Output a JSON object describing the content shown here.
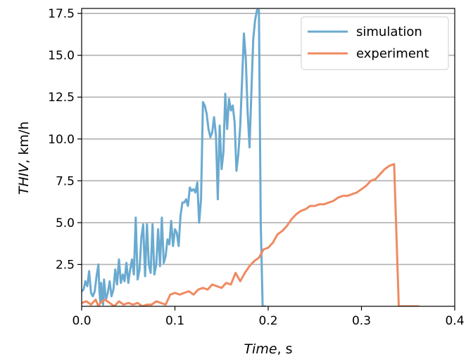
{
  "chart_data": {
    "type": "line",
    "xlabel": {
      "italic": "Time",
      "unit": ", s"
    },
    "ylabel": {
      "italic": "THIV",
      "unit": ", km/h"
    },
    "xlim": [
      0.0,
      0.4
    ],
    "ylim": [
      0.0,
      17.8
    ],
    "xticks": [
      0.0,
      0.1,
      0.2,
      0.3,
      0.4
    ],
    "xtick_labels": [
      "0.0",
      "0.1",
      "0.2",
      "0.3",
      "0.4"
    ],
    "yticks": [
      2.5,
      5.0,
      7.5,
      10.0,
      12.5,
      15.0,
      17.5
    ],
    "ytick_labels": [
      "2.5",
      "5.0",
      "7.5",
      "10.0",
      "12.5",
      "15.0",
      "17.5"
    ],
    "grid": "horizontal",
    "legend_position": "top-right",
    "series": [
      {
        "name": "simulation",
        "color": "#6aaad0",
        "x": [
          0.0,
          0.002,
          0.004,
          0.006,
          0.008,
          0.01,
          0.012,
          0.014,
          0.016,
          0.018,
          0.019,
          0.02,
          0.021,
          0.022,
          0.023,
          0.024,
          0.026,
          0.028,
          0.03,
          0.032,
          0.034,
          0.036,
          0.038,
          0.04,
          0.042,
          0.044,
          0.046,
          0.048,
          0.05,
          0.052,
          0.054,
          0.056,
          0.058,
          0.06,
          0.062,
          0.064,
          0.066,
          0.068,
          0.07,
          0.072,
          0.074,
          0.076,
          0.078,
          0.08,
          0.082,
          0.084,
          0.086,
          0.088,
          0.09,
          0.092,
          0.094,
          0.096,
          0.098,
          0.1,
          0.102,
          0.104,
          0.106,
          0.108,
          0.11,
          0.112,
          0.114,
          0.116,
          0.118,
          0.12,
          0.122,
          0.124,
          0.126,
          0.128,
          0.13,
          0.132,
          0.134,
          0.136,
          0.138,
          0.14,
          0.142,
          0.144,
          0.146,
          0.148,
          0.15,
          0.152,
          0.154,
          0.156,
          0.158,
          0.16,
          0.162,
          0.164,
          0.166,
          0.168,
          0.17,
          0.172,
          0.174,
          0.176,
          0.178,
          0.18,
          0.182,
          0.184,
          0.186,
          0.188,
          0.19,
          0.192,
          0.194,
          0.196,
          0.1965,
          0.1965
        ],
        "y": [
          0.9,
          1.0,
          1.5,
          1.2,
          2.1,
          0.8,
          0.6,
          0.9,
          1.8,
          2.5,
          1.0,
          0.2,
          1.4,
          0.5,
          0.1,
          1.6,
          0.4,
          0.8,
          1.5,
          0.6,
          1.0,
          2.2,
          1.3,
          2.8,
          1.4,
          1.9,
          1.5,
          2.6,
          1.4,
          2.2,
          2.8,
          1.9,
          5.3,
          1.6,
          2.2,
          4.1,
          4.9,
          1.8,
          4.9,
          2.5,
          2.0,
          4.9,
          1.9,
          2.5,
          4.6,
          2.4,
          5.3,
          2.6,
          3.0,
          4.0,
          3.7,
          5.1,
          3.6,
          4.6,
          4.4,
          3.6,
          5.4,
          6.2,
          6.2,
          6.4,
          6.0,
          7.1,
          6.9,
          7.0,
          6.8,
          7.4,
          5.0,
          6.4,
          12.2,
          12.0,
          11.5,
          10.6,
          10.1,
          10.4,
          11.3,
          10.2,
          6.4,
          10.8,
          8.2,
          9.2,
          12.7,
          10.6,
          12.4,
          11.7,
          12.0,
          11.0,
          8.1,
          9.1,
          10.8,
          13.5,
          16.3,
          14.8,
          11.6,
          9.5,
          12.8,
          16.0,
          17.1,
          17.7,
          17.7,
          5.0,
          0.0,
          0.0,
          0.0,
          0.0
        ]
      },
      {
        "name": "experiment",
        "color": "#f08a61",
        "x": [
          0.0,
          0.005,
          0.01,
          0.015,
          0.018,
          0.02,
          0.025,
          0.03,
          0.035,
          0.04,
          0.045,
          0.05,
          0.055,
          0.06,
          0.065,
          0.07,
          0.075,
          0.08,
          0.085,
          0.09,
          0.095,
          0.1,
          0.105,
          0.11,
          0.115,
          0.12,
          0.125,
          0.13,
          0.135,
          0.14,
          0.145,
          0.15,
          0.155,
          0.16,
          0.165,
          0.17,
          0.175,
          0.18,
          0.185,
          0.19,
          0.195,
          0.2,
          0.205,
          0.21,
          0.215,
          0.22,
          0.225,
          0.23,
          0.235,
          0.24,
          0.245,
          0.25,
          0.255,
          0.26,
          0.265,
          0.27,
          0.275,
          0.28,
          0.285,
          0.29,
          0.295,
          0.3,
          0.305,
          0.31,
          0.315,
          0.32,
          0.325,
          0.33,
          0.335,
          0.34,
          0.345,
          0.35,
          0.355,
          0.36,
          0.361,
          0.361
        ],
        "y": [
          0.2,
          0.3,
          0.1,
          0.4,
          0.0,
          0.2,
          0.4,
          0.2,
          0.0,
          0.3,
          0.1,
          0.2,
          0.1,
          0.2,
          0.0,
          0.1,
          0.1,
          0.3,
          0.2,
          0.1,
          0.7,
          0.8,
          0.7,
          0.8,
          0.9,
          0.7,
          1.0,
          1.1,
          1.0,
          1.3,
          1.2,
          1.1,
          1.4,
          1.3,
          2.0,
          1.5,
          2.0,
          2.4,
          2.7,
          2.9,
          3.4,
          3.5,
          3.8,
          4.3,
          4.5,
          4.8,
          5.2,
          5.5,
          5.7,
          5.8,
          6.0,
          6.0,
          6.1,
          6.1,
          6.2,
          6.3,
          6.5,
          6.6,
          6.6,
          6.7,
          6.8,
          7.0,
          7.2,
          7.5,
          7.6,
          7.9,
          8.2,
          8.4,
          8.5,
          0.0,
          0.0,
          0.0,
          0.0,
          0.0,
          0.0,
          0.0
        ]
      }
    ]
  }
}
